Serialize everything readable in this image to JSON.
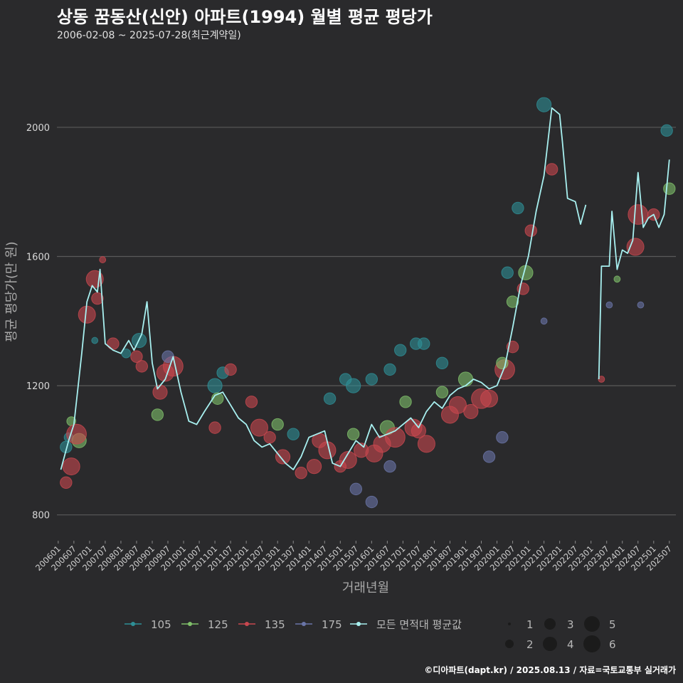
{
  "title": "상동 꿈동산(신안) 아파트(1994) 월별 평균 평당가",
  "subtitle": "2006-02-08 ~ 2025-07-28(최근계약일)",
  "footer": "©디아파트(dapt.kr) / 2025.08.13 / 자료=국토교통부 실거래가",
  "chart_data": {
    "type": "line",
    "title": "상동 꿈동산(신안) 아파트(1994) 월별 평균 평당가",
    "xlabel": "거래년월",
    "ylabel": "평균 평당가(만 원)",
    "ylim": [
      720,
      2240
    ],
    "yticks": [
      800,
      1200,
      1600,
      2000
    ],
    "xlim": [
      "2006-01",
      "2025-09"
    ],
    "xticks": [
      "200601",
      "200607",
      "200701",
      "200707",
      "200801",
      "200807",
      "200901",
      "200907",
      "201001",
      "201007",
      "201101",
      "201107",
      "201201",
      "201207",
      "201301",
      "201307",
      "201401",
      "201407",
      "201501",
      "201507",
      "201601",
      "201607",
      "201701",
      "201707",
      "201801",
      "201807",
      "201901",
      "201907",
      "202001",
      "202007",
      "202101",
      "202107",
      "202201",
      "202207",
      "202301",
      "202307",
      "202401",
      "202407",
      "202501",
      "202507"
    ],
    "grid": true,
    "legend_position": "bottom",
    "colors": {
      "105": "#2e8f96",
      "125": "#7fbf6a",
      "135": "#c8474f",
      "175": "#6a75a8",
      "avg": "#a8f0f0"
    },
    "legend": {
      "series": [
        {
          "key": "105",
          "label": "105"
        },
        {
          "key": "125",
          "label": "125"
        },
        {
          "key": "135",
          "label": "135"
        },
        {
          "key": "175",
          "label": "175"
        },
        {
          "key": "avg",
          "label": "모든 면적대 평균값"
        }
      ],
      "sizes": [
        "1",
        "2",
        "3",
        "4",
        "5",
        "6"
      ]
    },
    "average_line": [
      {
        "x": "2006-02",
        "y": 940
      },
      {
        "x": "2006-05",
        "y": 1030
      },
      {
        "x": "2006-07",
        "y": 1080
      },
      {
        "x": "2006-10",
        "y": 1300
      },
      {
        "x": "2006-12",
        "y": 1460
      },
      {
        "x": "2007-02",
        "y": 1510
      },
      {
        "x": "2007-04",
        "y": 1490
      },
      {
        "x": "2007-05",
        "y": 1560
      },
      {
        "x": "2007-07",
        "y": 1330
      },
      {
        "x": "2007-10",
        "y": 1310
      },
      {
        "x": "2008-01",
        "y": 1300
      },
      {
        "x": "2008-04",
        "y": 1340
      },
      {
        "x": "2008-06",
        "y": 1310
      },
      {
        "x": "2008-09",
        "y": 1360
      },
      {
        "x": "2008-11",
        "y": 1460
      },
      {
        "x": "2009-01",
        "y": 1270
      },
      {
        "x": "2009-03",
        "y": 1190
      },
      {
        "x": "2009-06",
        "y": 1220
      },
      {
        "x": "2009-09",
        "y": 1290
      },
      {
        "x": "2009-12",
        "y": 1180
      },
      {
        "x": "2010-03",
        "y": 1090
      },
      {
        "x": "2010-06",
        "y": 1080
      },
      {
        "x": "2010-09",
        "y": 1120
      },
      {
        "x": "2011-01",
        "y": 1170
      },
      {
        "x": "2011-04",
        "y": 1180
      },
      {
        "x": "2011-07",
        "y": 1140
      },
      {
        "x": "2011-10",
        "y": 1100
      },
      {
        "x": "2012-01",
        "y": 1080
      },
      {
        "x": "2012-04",
        "y": 1030
      },
      {
        "x": "2012-07",
        "y": 1010
      },
      {
        "x": "2012-10",
        "y": 1020
      },
      {
        "x": "2013-01",
        "y": 990
      },
      {
        "x": "2013-04",
        "y": 960
      },
      {
        "x": "2013-07",
        "y": 940
      },
      {
        "x": "2013-10",
        "y": 980
      },
      {
        "x": "2014-01",
        "y": 1040
      },
      {
        "x": "2014-04",
        "y": 1050
      },
      {
        "x": "2014-07",
        "y": 1060
      },
      {
        "x": "2014-10",
        "y": 960
      },
      {
        "x": "2015-01",
        "y": 950
      },
      {
        "x": "2015-04",
        "y": 990
      },
      {
        "x": "2015-07",
        "y": 1030
      },
      {
        "x": "2015-10",
        "y": 1010
      },
      {
        "x": "2016-01",
        "y": 1080
      },
      {
        "x": "2016-04",
        "y": 1040
      },
      {
        "x": "2016-07",
        "y": 1050
      },
      {
        "x": "2016-10",
        "y": 1060
      },
      {
        "x": "2017-01",
        "y": 1080
      },
      {
        "x": "2017-04",
        "y": 1100
      },
      {
        "x": "2017-07",
        "y": 1070
      },
      {
        "x": "2017-10",
        "y": 1120
      },
      {
        "x": "2018-01",
        "y": 1150
      },
      {
        "x": "2018-04",
        "y": 1130
      },
      {
        "x": "2018-07",
        "y": 1170
      },
      {
        "x": "2018-10",
        "y": 1190
      },
      {
        "x": "2019-01",
        "y": 1200
      },
      {
        "x": "2019-04",
        "y": 1220
      },
      {
        "x": "2019-07",
        "y": 1210
      },
      {
        "x": "2019-10",
        "y": 1190
      },
      {
        "x": "2020-01",
        "y": 1200
      },
      {
        "x": "2020-04",
        "y": 1260
      },
      {
        "x": "2020-07",
        "y": 1380
      },
      {
        "x": "2020-10",
        "y": 1510
      },
      {
        "x": "2021-01",
        "y": 1600
      },
      {
        "x": "2021-04",
        "y": 1740
      },
      {
        "x": "2021-07",
        "y": 1850
      },
      {
        "x": "2021-10",
        "y": 2060
      },
      {
        "x": "2022-01",
        "y": 2040
      },
      {
        "x": "2022-02",
        "y": 1960
      },
      {
        "x": "2022-04",
        "y": 1780
      },
      {
        "x": "2022-07",
        "y": 1770
      },
      {
        "x": "2022-09",
        "y": 1700
      },
      {
        "x": "2022-11",
        "y": 1760
      },
      {
        "x": "2023-04",
        "y": 1220,
        "break": true
      },
      {
        "x": "2023-05",
        "y": 1570
      },
      {
        "x": "2023-08",
        "y": 1570
      },
      {
        "x": "2023-09",
        "y": 1740
      },
      {
        "x": "2023-11",
        "y": 1560
      },
      {
        "x": "2024-01",
        "y": 1620
      },
      {
        "x": "2024-03",
        "y": 1610
      },
      {
        "x": "2024-05",
        "y": 1650
      },
      {
        "x": "2024-07",
        "y": 1860
      },
      {
        "x": "2024-09",
        "y": 1690
      },
      {
        "x": "2024-11",
        "y": 1720
      },
      {
        "x": "2025-01",
        "y": 1730
      },
      {
        "x": "2025-03",
        "y": 1690
      },
      {
        "x": "2025-05",
        "y": 1730
      },
      {
        "x": "2025-07",
        "y": 1900
      }
    ],
    "series_points": [
      {
        "s": "105",
        "x": "2006-04",
        "y": 1010,
        "n": 3
      },
      {
        "s": "105",
        "x": "2006-05",
        "y": 1040,
        "n": 2
      },
      {
        "s": "125",
        "x": "2006-06",
        "y": 1090,
        "n": 2
      },
      {
        "s": "125",
        "x": "2006-09",
        "y": 1030,
        "n": 4
      },
      {
        "s": "135",
        "x": "2006-04",
        "y": 900,
        "n": 3
      },
      {
        "s": "135",
        "x": "2006-06",
        "y": 950,
        "n": 5
      },
      {
        "s": "135",
        "x": "2006-08",
        "y": 1050,
        "n": 6
      },
      {
        "s": "135",
        "x": "2006-12",
        "y": 1420,
        "n": 5
      },
      {
        "s": "135",
        "x": "2007-03",
        "y": 1530,
        "n": 5
      },
      {
        "s": "135",
        "x": "2007-04",
        "y": 1470,
        "n": 3
      },
      {
        "s": "135",
        "x": "2007-06",
        "y": 1590,
        "n": 1
      },
      {
        "s": "105",
        "x": "2007-03",
        "y": 1340,
        "n": 1
      },
      {
        "s": "135",
        "x": "2007-10",
        "y": 1330,
        "n": 3
      },
      {
        "s": "105",
        "x": "2008-03",
        "y": 1300,
        "n": 2
      },
      {
        "s": "105",
        "x": "2008-08",
        "y": 1340,
        "n": 4
      },
      {
        "s": "135",
        "x": "2008-07",
        "y": 1290,
        "n": 3
      },
      {
        "s": "135",
        "x": "2008-09",
        "y": 1260,
        "n": 3
      },
      {
        "s": "125",
        "x": "2009-03",
        "y": 1110,
        "n": 3
      },
      {
        "s": "135",
        "x": "2009-04",
        "y": 1180,
        "n": 4
      },
      {
        "s": "135",
        "x": "2009-06",
        "y": 1240,
        "n": 5
      },
      {
        "s": "135",
        "x": "2009-09",
        "y": 1260,
        "n": 6
      },
      {
        "s": "175",
        "x": "2009-07",
        "y": 1290,
        "n": 3
      },
      {
        "s": "105",
        "x": "2011-01",
        "y": 1200,
        "n": 4
      },
      {
        "s": "105",
        "x": "2011-04",
        "y": 1240,
        "n": 3
      },
      {
        "s": "125",
        "x": "2011-02",
        "y": 1160,
        "n": 3
      },
      {
        "s": "135",
        "x": "2011-01",
        "y": 1070,
        "n": 3
      },
      {
        "s": "135",
        "x": "2011-07",
        "y": 1250,
        "n": 3
      },
      {
        "s": "135",
        "x": "2012-03",
        "y": 1150,
        "n": 3
      },
      {
        "s": "135",
        "x": "2012-06",
        "y": 1070,
        "n": 5
      },
      {
        "s": "135",
        "x": "2012-10",
        "y": 1040,
        "n": 3
      },
      {
        "s": "125",
        "x": "2013-01",
        "y": 1080,
        "n": 3
      },
      {
        "s": "135",
        "x": "2013-03",
        "y": 980,
        "n": 4
      },
      {
        "s": "105",
        "x": "2013-07",
        "y": 1050,
        "n": 3
      },
      {
        "s": "135",
        "x": "2013-10",
        "y": 930,
        "n": 3
      },
      {
        "s": "135",
        "x": "2014-03",
        "y": 950,
        "n": 4
      },
      {
        "s": "135",
        "x": "2014-05",
        "y": 1030,
        "n": 4
      },
      {
        "s": "135",
        "x": "2014-08",
        "y": 1000,
        "n": 5
      },
      {
        "s": "105",
        "x": "2014-09",
        "y": 1160,
        "n": 3
      },
      {
        "s": "135",
        "x": "2015-01",
        "y": 950,
        "n": 3
      },
      {
        "s": "135",
        "x": "2015-04",
        "y": 970,
        "n": 5
      },
      {
        "s": "105",
        "x": "2015-03",
        "y": 1220,
        "n": 3
      },
      {
        "s": "105",
        "x": "2015-06",
        "y": 1200,
        "n": 4
      },
      {
        "s": "175",
        "x": "2015-07",
        "y": 880,
        "n": 3
      },
      {
        "s": "125",
        "x": "2015-06",
        "y": 1050,
        "n": 3
      },
      {
        "s": "135",
        "x": "2015-09",
        "y": 1000,
        "n": 4
      },
      {
        "s": "135",
        "x": "2016-02",
        "y": 990,
        "n": 5
      },
      {
        "s": "105",
        "x": "2016-01",
        "y": 1220,
        "n": 3
      },
      {
        "s": "175",
        "x": "2016-01",
        "y": 840,
        "n": 3
      },
      {
        "s": "135",
        "x": "2016-05",
        "y": 1020,
        "n": 5
      },
      {
        "s": "125",
        "x": "2016-07",
        "y": 1070,
        "n": 4
      },
      {
        "s": "135",
        "x": "2016-10",
        "y": 1040,
        "n": 6
      },
      {
        "s": "105",
        "x": "2016-08",
        "y": 1250,
        "n": 3
      },
      {
        "s": "175",
        "x": "2016-08",
        "y": 950,
        "n": 3
      },
      {
        "s": "105",
        "x": "2016-12",
        "y": 1310,
        "n": 3
      },
      {
        "s": "125",
        "x": "2017-02",
        "y": 1150,
        "n": 3
      },
      {
        "s": "135",
        "x": "2017-05",
        "y": 1070,
        "n": 5
      },
      {
        "s": "105",
        "x": "2017-06",
        "y": 1330,
        "n": 3
      },
      {
        "s": "105",
        "x": "2017-09",
        "y": 1330,
        "n": 3
      },
      {
        "s": "135",
        "x": "2017-07",
        "y": 1060,
        "n": 4
      },
      {
        "s": "135",
        "x": "2017-10",
        "y": 1020,
        "n": 5
      },
      {
        "s": "105",
        "x": "2018-04",
        "y": 1270,
        "n": 3
      },
      {
        "s": "125",
        "x": "2018-04",
        "y": 1180,
        "n": 3
      },
      {
        "s": "135",
        "x": "2018-07",
        "y": 1110,
        "n": 5
      },
      {
        "s": "135",
        "x": "2018-10",
        "y": 1140,
        "n": 5
      },
      {
        "s": "125",
        "x": "2019-01",
        "y": 1220,
        "n": 4
      },
      {
        "s": "135",
        "x": "2019-03",
        "y": 1120,
        "n": 4
      },
      {
        "s": "135",
        "x": "2019-07",
        "y": 1160,
        "n": 6
      },
      {
        "s": "135",
        "x": "2019-10",
        "y": 1160,
        "n": 5
      },
      {
        "s": "175",
        "x": "2019-10",
        "y": 980,
        "n": 3
      },
      {
        "s": "175",
        "x": "2020-03",
        "y": 1040,
        "n": 3
      },
      {
        "s": "135",
        "x": "2020-04",
        "y": 1250,
        "n": 6
      },
      {
        "s": "125",
        "x": "2020-03",
        "y": 1270,
        "n": 3
      },
      {
        "s": "135",
        "x": "2020-07",
        "y": 1320,
        "n": 3
      },
      {
        "s": "105",
        "x": "2020-05",
        "y": 1550,
        "n": 3
      },
      {
        "s": "125",
        "x": "2020-07",
        "y": 1460,
        "n": 3
      },
      {
        "s": "105",
        "x": "2020-09",
        "y": 1750,
        "n": 3
      },
      {
        "s": "135",
        "x": "2020-11",
        "y": 1500,
        "n": 3
      },
      {
        "s": "125",
        "x": "2020-12",
        "y": 1550,
        "n": 4
      },
      {
        "s": "135",
        "x": "2021-02",
        "y": 1680,
        "n": 3
      },
      {
        "s": "105",
        "x": "2021-07",
        "y": 2070,
        "n": 4
      },
      {
        "s": "135",
        "x": "2021-10",
        "y": 1870,
        "n": 3
      },
      {
        "s": "175",
        "x": "2021-07",
        "y": 1400,
        "n": 1
      },
      {
        "s": "135",
        "x": "2023-05",
        "y": 1220,
        "n": 1
      },
      {
        "s": "175",
        "x": "2023-08",
        "y": 1450,
        "n": 1
      },
      {
        "s": "125",
        "x": "2023-11",
        "y": 1530,
        "n": 1
      },
      {
        "s": "135",
        "x": "2024-06",
        "y": 1630,
        "n": 5
      },
      {
        "s": "135",
        "x": "2024-07",
        "y": 1730,
        "n": 6
      },
      {
        "s": "175",
        "x": "2024-08",
        "y": 1450,
        "n": 1
      },
      {
        "s": "135",
        "x": "2025-01",
        "y": 1730,
        "n": 3
      },
      {
        "s": "105",
        "x": "2025-06",
        "y": 1990,
        "n": 3
      },
      {
        "s": "125",
        "x": "2025-07",
        "y": 1810,
        "n": 3
      }
    ]
  }
}
